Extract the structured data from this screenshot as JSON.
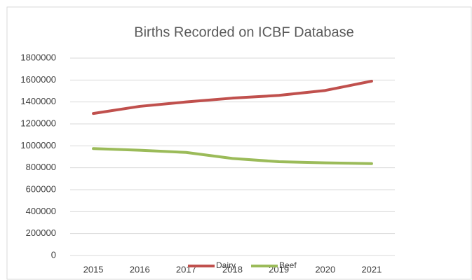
{
  "chart_data": {
    "type": "line",
    "title": "Births Recorded on ICBF Database",
    "categories": [
      "2015",
      "2016",
      "2017",
      "2018",
      "2019",
      "2020",
      "2021"
    ],
    "series": [
      {
        "name": "Dairy",
        "color": "#c0504d",
        "values": [
          1295000,
          1360000,
          1400000,
          1435000,
          1460000,
          1505000,
          1590000
        ]
      },
      {
        "name": "Beef",
        "color": "#9bbb59",
        "values": [
          975000,
          960000,
          940000,
          885000,
          855000,
          845000,
          838000
        ]
      }
    ],
    "ylim": [
      0,
      1800000
    ],
    "yticks": [
      0,
      200000,
      400000,
      600000,
      800000,
      1000000,
      1200000,
      1400000,
      1600000,
      1800000
    ],
    "grid": true,
    "legend": "bottom"
  }
}
